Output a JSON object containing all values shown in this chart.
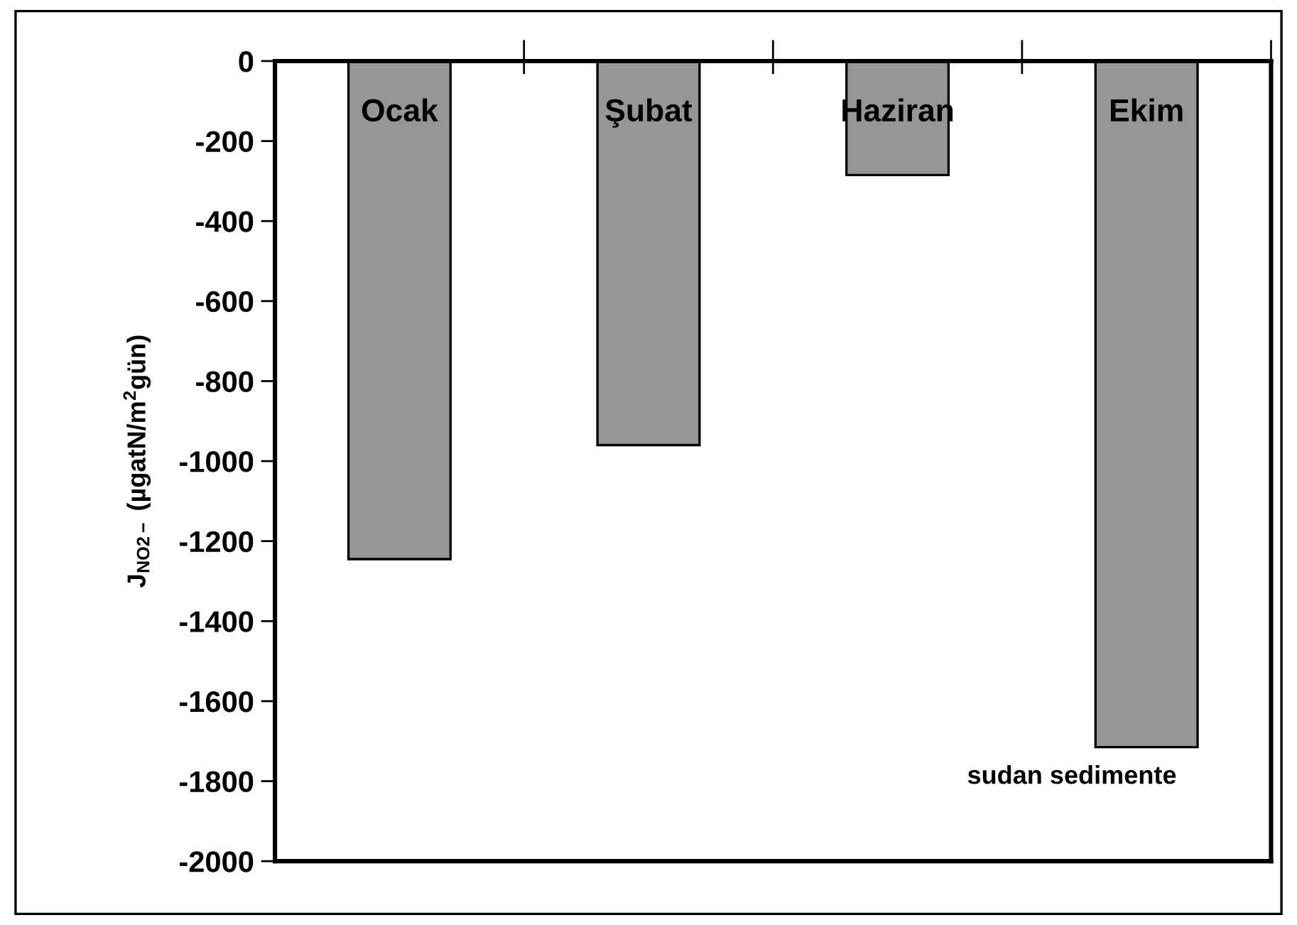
{
  "chart_data": {
    "type": "bar",
    "categories": [
      "Ocak",
      "Şubat",
      "Haziran",
      "Ekim"
    ],
    "values": [
      -1245,
      -960,
      -285,
      -1715
    ],
    "color": "#969696",
    "ylabel": "J$_{NO2−}$ (µgatN/m$^{2}$gün)",
    "ylim": [
      -2000,
      0
    ],
    "yticks": [
      0,
      -200,
      -400,
      -600,
      -800,
      -1000,
      -1200,
      -1400,
      -1600,
      -1800,
      -2000
    ],
    "annotations": [
      "sudan sedimente"
    ],
    "grid": false,
    "legend": false
  }
}
